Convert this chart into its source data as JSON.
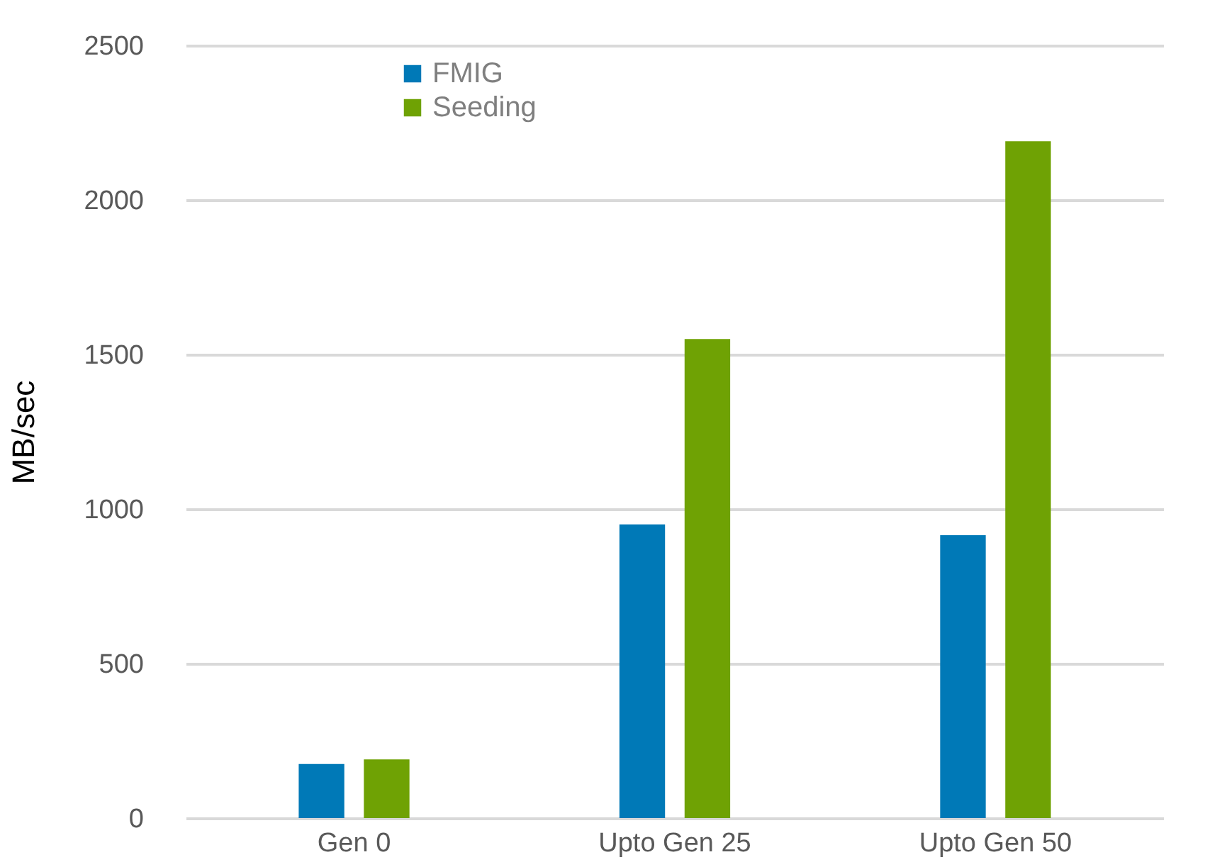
{
  "chart_data": {
    "type": "bar",
    "ylabel": "MB/sec",
    "categories": [
      "Gen 0",
      "Upto Gen 25",
      "Upto Gen 50"
    ],
    "series": [
      {
        "name": "FMIG",
        "color": "#0079b7",
        "values": [
          175,
          950,
          915
        ]
      },
      {
        "name": "Seeding",
        "color": "#6fa204",
        "values": [
          190,
          1550,
          2190
        ]
      }
    ],
    "ylim": [
      0,
      2500
    ],
    "yticks": [
      0,
      500,
      1000,
      1500,
      2000,
      2500
    ],
    "grid": "y",
    "legend": "top left"
  }
}
